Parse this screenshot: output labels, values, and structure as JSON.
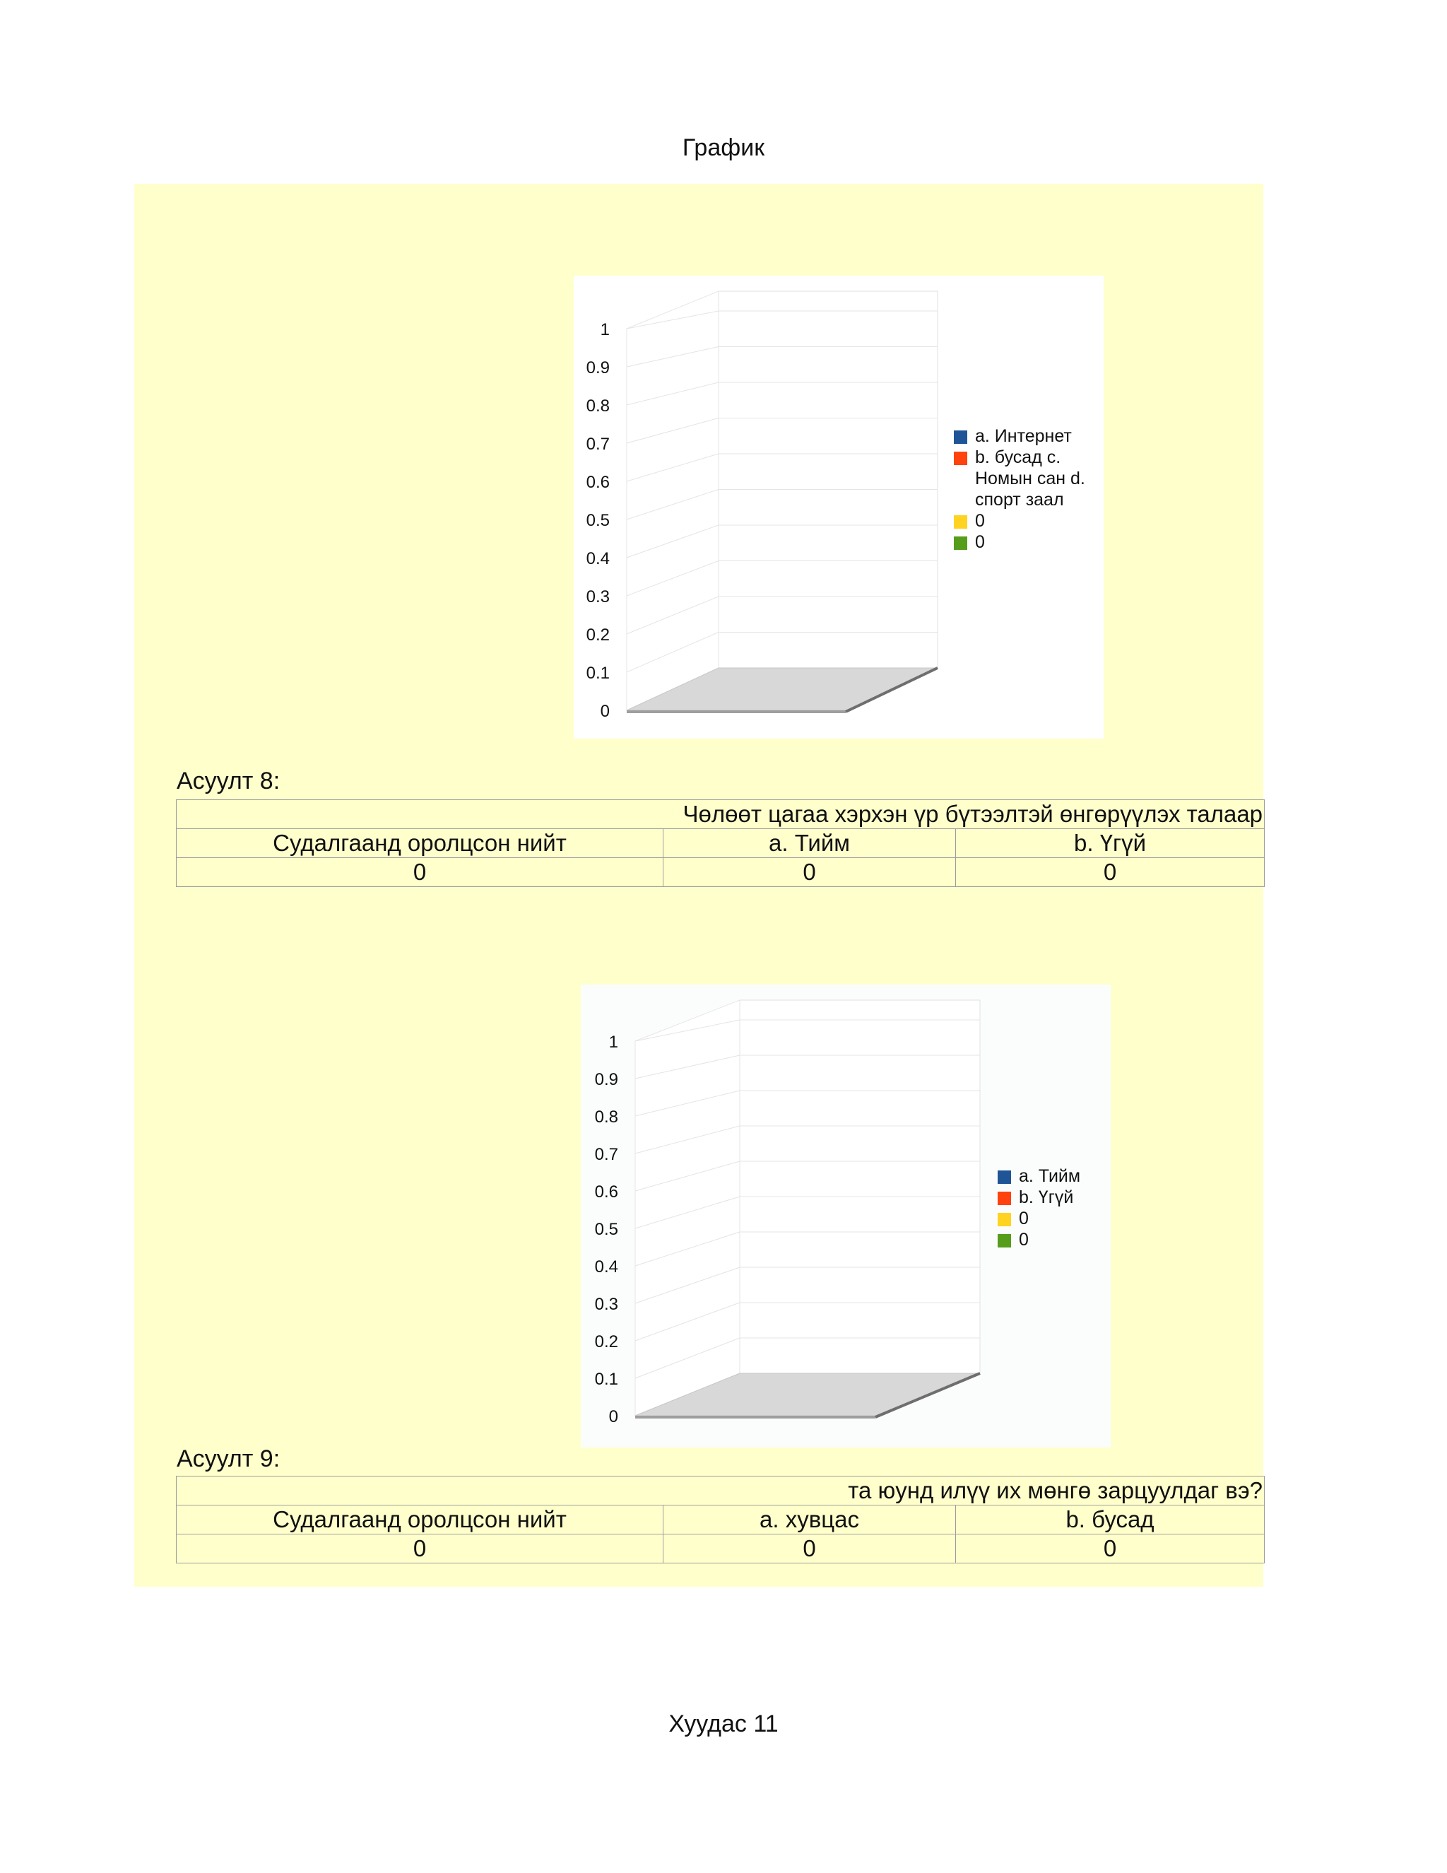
{
  "page": {
    "header_title": "График",
    "footer_text": "Хуудас 11"
  },
  "colors": {
    "background_band": "#ffffcc",
    "series_blue": "#1f5597",
    "series_red": "#ff420e",
    "series_yellow": "#ffd320",
    "series_green": "#579d1c"
  },
  "chart_data": [
    {
      "type": "bar",
      "three_d": true,
      "ylim": [
        0,
        1
      ],
      "y_ticks": [
        "0",
        "0.1",
        "0.2",
        "0.3",
        "0.4",
        "0.5",
        "0.6",
        "0.7",
        "0.8",
        "0.9",
        "1"
      ],
      "grid": true,
      "legend_position": "right",
      "series": [
        {
          "name": "a. Интернет",
          "values": [
            0
          ],
          "color": "series_blue"
        },
        {
          "name": "b. бусад  c. Номын сан d. спорт заал",
          "values": [
            0
          ],
          "color": "series_red"
        },
        {
          "name": "0",
          "values": [
            0
          ],
          "color": "series_yellow"
        },
        {
          "name": "0",
          "values": [
            0
          ],
          "color": "series_green"
        }
      ]
    },
    {
      "type": "bar",
      "three_d": true,
      "ylim": [
        0,
        1
      ],
      "y_ticks": [
        "0",
        "0.1",
        "0.2",
        "0.3",
        "0.4",
        "0.5",
        "0.6",
        "0.7",
        "0.8",
        "0.9",
        "1"
      ],
      "grid": true,
      "legend_position": "right",
      "series": [
        {
          "name": "a. Тийм",
          "values": [
            0
          ],
          "color": "series_blue"
        },
        {
          "name": "b. Үгүй",
          "values": [
            0
          ],
          "color": "series_red"
        },
        {
          "name": "0",
          "values": [
            0
          ],
          "color": "series_yellow"
        },
        {
          "name": "0",
          "values": [
            0
          ],
          "color": "series_green"
        }
      ]
    }
  ],
  "question8": {
    "label": "Асуулт 8:",
    "title": "Чөлөөт цагаа хэрхэн үр бүтээлтэй өнгөрүүлэх талаар",
    "headers": [
      "Судалгаанд оролцсон нийт",
      "a. Тийм",
      "b. Үгүй"
    ],
    "values": [
      "0",
      "0",
      "0"
    ]
  },
  "question9": {
    "label": "Асуулт 9:",
    "title": "та юунд илүү  их мөнгө зарцуулдаг вэ?",
    "headers": [
      "Судалгаанд оролцсон нийт",
      "a. хувцас",
      "b. бусад"
    ],
    "values": [
      "0",
      "0",
      "0"
    ]
  }
}
